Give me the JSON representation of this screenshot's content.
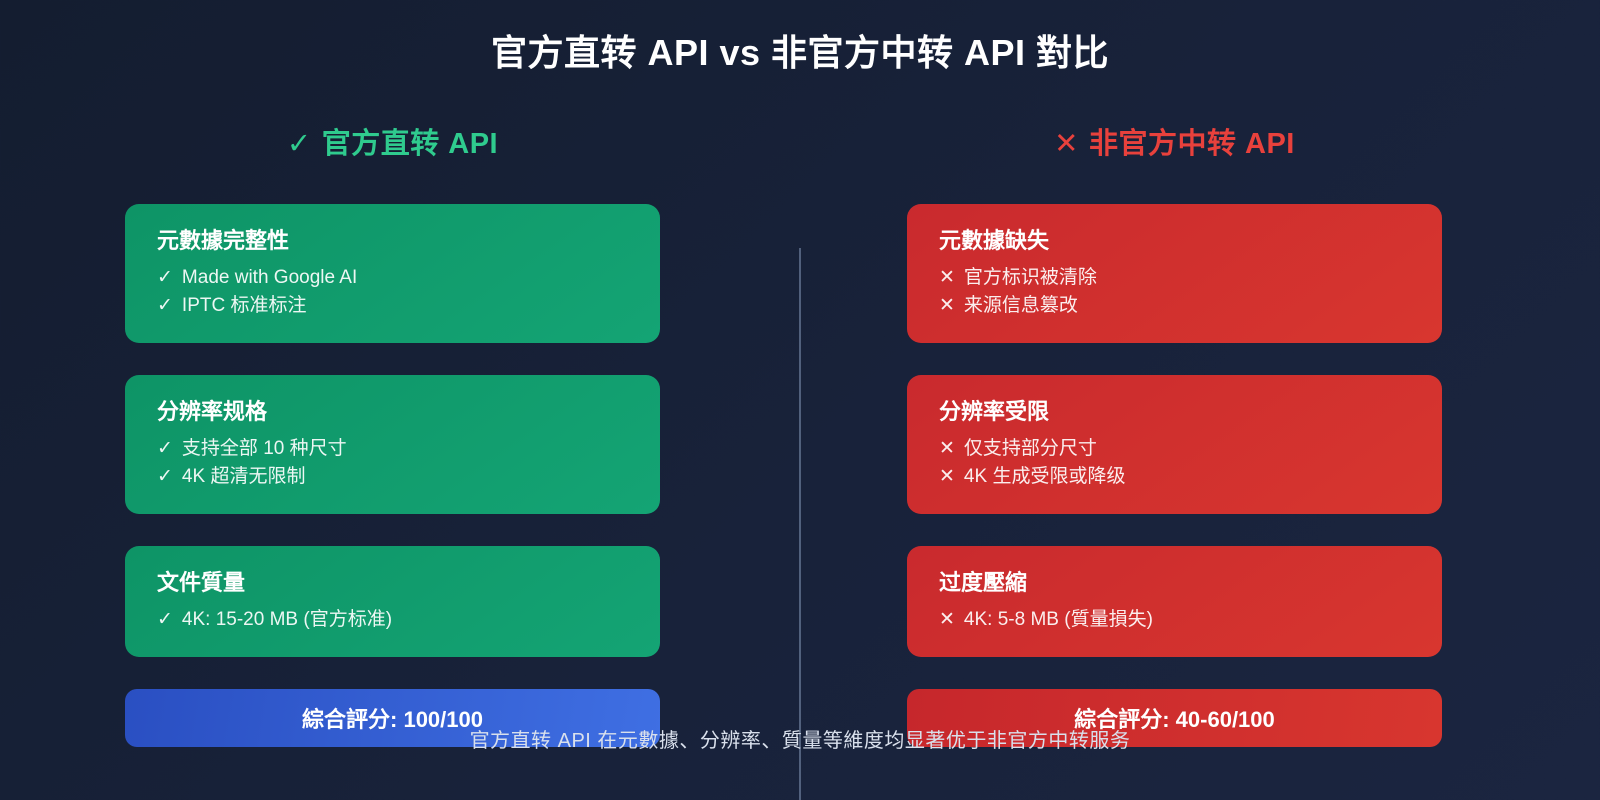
{
  "page": {
    "title": "官方直转 API vs 非官方中转 API 對比",
    "footer": "官方直转 API 在元數據、分辨率、質量等維度均显著优于非官方中转服务"
  },
  "colors": {
    "background": "#18223a",
    "card_green": "#10a06e",
    "card_red": "#d2302f",
    "score_blue": "#3058d0",
    "header_green": "#2fcb8e",
    "header_red": "#e8413c",
    "divider": "#82A0B4"
  },
  "columns": {
    "left": {
      "header_icon": "✓",
      "header_label": "官方直转 API",
      "cards": [
        {
          "title": "元數據完整性",
          "items": [
            {
              "icon": "✓",
              "text": "Made with Google AI"
            },
            {
              "icon": "✓",
              "text": "IPTC 标准标注"
            }
          ]
        },
        {
          "title": "分辨率规格",
          "items": [
            {
              "icon": "✓",
              "text": "支持全部 10 种尺寸"
            },
            {
              "icon": "✓",
              "text": "4K 超清无限制"
            }
          ]
        },
        {
          "title": "文件質量",
          "items": [
            {
              "icon": "✓",
              "text": "4K: 15-20 MB (官方标准)"
            }
          ]
        }
      ],
      "score": "綜合評分: 100/100"
    },
    "right": {
      "header_icon": "✕",
      "header_label": "非官方中转 API",
      "cards": [
        {
          "title": "元數據缺失",
          "items": [
            {
              "icon": "✕",
              "text": "官方标识被清除"
            },
            {
              "icon": "✕",
              "text": "来源信息篡改"
            }
          ]
        },
        {
          "title": "分辨率受限",
          "items": [
            {
              "icon": "✕",
              "text": "仅支持部分尺寸"
            },
            {
              "icon": "✕",
              "text": "4K 生成受限或降级"
            }
          ]
        },
        {
          "title": "过度壓縮",
          "items": [
            {
              "icon": "✕",
              "text": "4K: 5-8 MB (質量損失)"
            }
          ]
        }
      ],
      "score": "綜合評分: 40-60/100"
    }
  }
}
